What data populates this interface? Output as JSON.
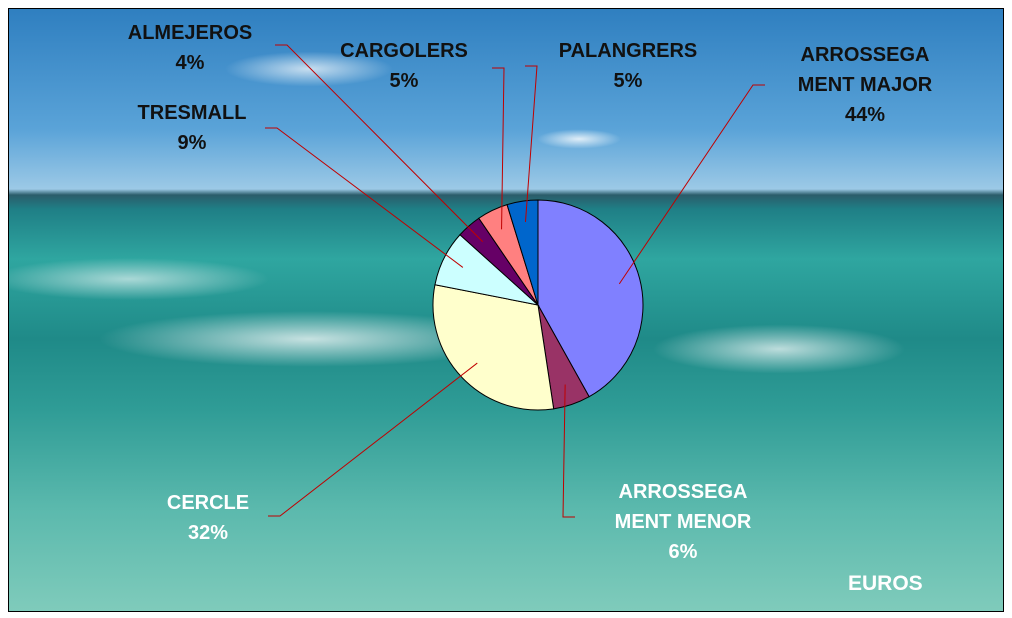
{
  "chart_data": {
    "type": "pie",
    "title": "EUROS",
    "categories": [
      "ARROSSEGA\nMENT MAJOR",
      "ARROSSEGA\nMENT MENOR",
      "CERCLE",
      "TRESMALL",
      "ALMEJEROS",
      "CARGOLERS",
      "PALANGRERS"
    ],
    "values": [
      44,
      6,
      32,
      9,
      4,
      5,
      5
    ],
    "value_labels": [
      "44%",
      "6%",
      "32%",
      "9%",
      "4%",
      "5%",
      "5%"
    ],
    "colors": [
      "#8080ff",
      "#993366",
      "#ffffcc",
      "#ccffff",
      "#660066",
      "#ff8080",
      "#0066cc"
    ]
  }
}
